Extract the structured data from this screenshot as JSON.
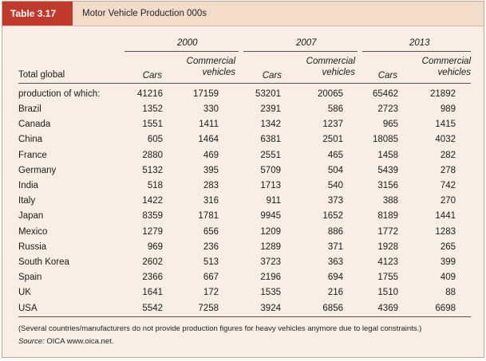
{
  "table": {
    "tag": "Table 3.17",
    "title": "Motor Vehicle Production 000s",
    "years": [
      "2000",
      "2007",
      "2013"
    ],
    "col_cars": "Cars",
    "col_commercial_line1": "Commercial",
    "col_commercial_line2": "vehicles",
    "label_line1": "Total global",
    "label_line2": "production of which:",
    "totals": [
      "41216",
      "17159",
      "53201",
      "20065",
      "65462",
      "21892"
    ],
    "rows": [
      {
        "country": "Brazil",
        "values": [
          "1352",
          "330",
          "2391",
          "586",
          "2723",
          "989"
        ]
      },
      {
        "country": "Canada",
        "values": [
          "1551",
          "1411",
          "1342",
          "1237",
          "965",
          "1415"
        ]
      },
      {
        "country": "China",
        "values": [
          "605",
          "1464",
          "6381",
          "2501",
          "18085",
          "4032"
        ]
      },
      {
        "country": "France",
        "values": [
          "2880",
          "469",
          "2551",
          "465",
          "1458",
          "282"
        ]
      },
      {
        "country": "Germany",
        "values": [
          "5132",
          "395",
          "5709",
          "504",
          "5439",
          "278"
        ]
      },
      {
        "country": "India",
        "values": [
          "518",
          "283",
          "1713",
          "540",
          "3156",
          "742"
        ]
      },
      {
        "country": "Italy",
        "values": [
          "1422",
          "316",
          "911",
          "373",
          "388",
          "270"
        ]
      },
      {
        "country": "Japan",
        "values": [
          "8359",
          "1781",
          "9945",
          "1652",
          "8189",
          "1441"
        ]
      },
      {
        "country": "Mexico",
        "values": [
          "1279",
          "656",
          "1209",
          "886",
          "1772",
          "1283"
        ]
      },
      {
        "country": "Russia",
        "values": [
          "969",
          "236",
          "1289",
          "371",
          "1928",
          "265"
        ]
      },
      {
        "country": "South Korea",
        "values": [
          "2602",
          "513",
          "3723",
          "363",
          "4123",
          "399"
        ]
      },
      {
        "country": "Spain",
        "values": [
          "2366",
          "667",
          "2196",
          "694",
          "1755",
          "409"
        ]
      },
      {
        "country": "UK",
        "values": [
          "1641",
          "172",
          "1535",
          "216",
          "1510",
          "88"
        ]
      },
      {
        "country": "USA",
        "values": [
          "5542",
          "7258",
          "3924",
          "6856",
          "4369",
          "6698"
        ]
      }
    ],
    "note": "(Several countries/manufacturers do not provide production figures for heavy vehicles anymore due to legal constraints.)",
    "source_label": "Source:",
    "source_text": "OICA www.oica.net."
  },
  "colors": {
    "tag_bg": "#c0392b",
    "title_bg": "#f4dccb",
    "body_bg": "#f9eee5"
  }
}
